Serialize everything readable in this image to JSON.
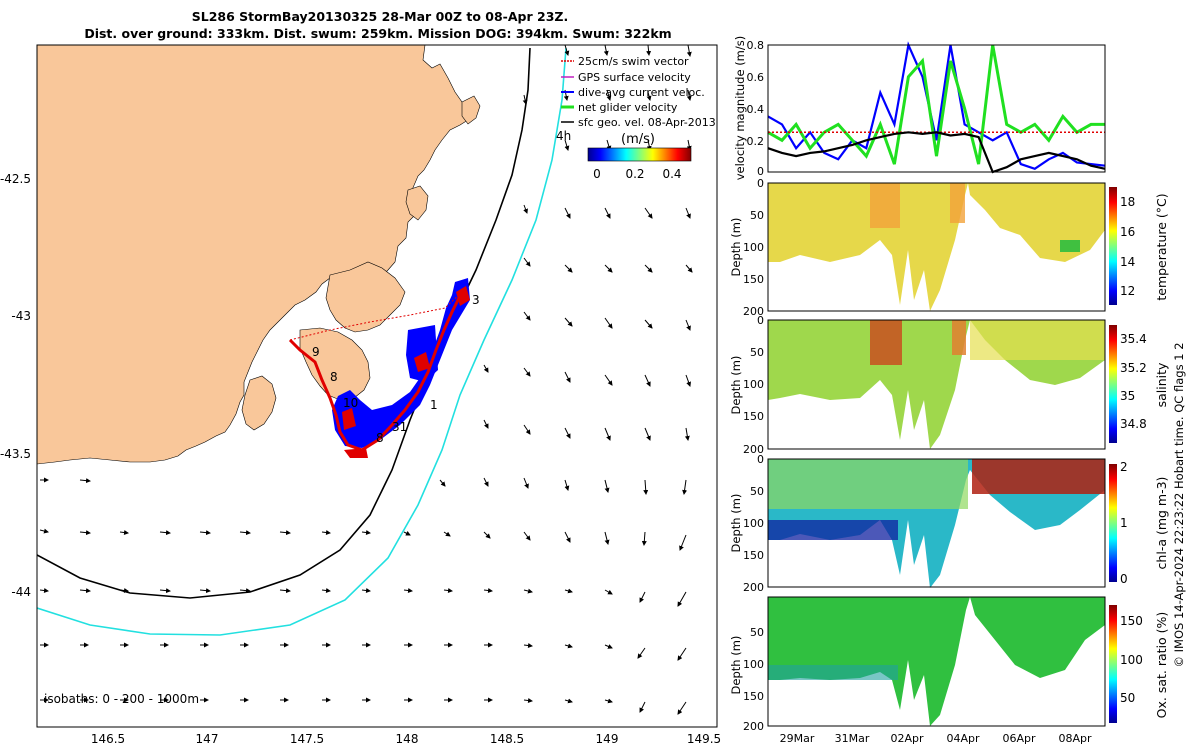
{
  "header": {
    "title_line1": "SL286 StormBay20130325 28-Mar 00Z to 08-Apr 23Z.",
    "title_line2": "Dist. over ground: 333km. Dist. swum: 259km. Mission DOG: 394km. Swum: 322km"
  },
  "map": {
    "x_ticks": [
      "146.5",
      "147",
      "147.5",
      "148",
      "148.5",
      "149",
      "149.5"
    ],
    "y_ticks": [
      "-42.5",
      "-43",
      "-43.5",
      "-44"
    ],
    "isobaths_label": "isobaths: 0 - 200 - 1000m",
    "elapsed_label": "4h",
    "legend": [
      {
        "label": "25cm/s swim vector",
        "color": "#e00000"
      },
      {
        "label": "GPS surface velocity",
        "color": "#c020c0"
      },
      {
        "label": "dive-avg current veloc.",
        "color": "#0000ff"
      },
      {
        "label": "net glider velocity",
        "color": "#20e020"
      },
      {
        "label": "sfc geo. vel. 08-Apr-2013",
        "color": "#000000"
      }
    ],
    "colorbar": {
      "title": "(m/s)",
      "ticks": [
        "0",
        "0.2",
        "0.4"
      ]
    },
    "waypoint_labels": [
      "9",
      "8",
      "10",
      "1",
      "31",
      "8",
      "3"
    ]
  },
  "colors": {
    "land": "#f9c79a",
    "isobath_200": "#000000",
    "isobath_1000": "#20e0e0",
    "glider_track": "#e00000",
    "dive_current": "#0000ff",
    "net_velocity": "#20e020"
  },
  "chart_data": [
    {
      "type": "line",
      "title": "",
      "ylabel": "velocity magnitude (m/s)",
      "ylim": [
        0,
        0.8
      ],
      "y_ticks": [
        "0.8",
        "0.6",
        "0.4",
        "0.2",
        "0"
      ],
      "series": [
        {
          "name": "dive-avg current veloc.",
          "color": "#0000ff",
          "values": [
            0.35,
            0.3,
            0.15,
            0.25,
            0.12,
            0.08,
            0.2,
            0.15,
            0.5,
            0.3,
            0.8,
            0.6,
            0.2,
            0.8,
            0.3,
            0.25,
            0.2,
            0.25,
            0.05,
            0.02,
            0.08,
            0.12,
            0.06,
            0.05,
            0.04
          ]
        },
        {
          "name": "net glider velocity",
          "color": "#20e020",
          "values": [
            0.25,
            0.2,
            0.3,
            0.15,
            0.25,
            0.3,
            0.2,
            0.1,
            0.3,
            0.05,
            0.6,
            0.7,
            0.1,
            0.7,
            0.4,
            0.05,
            0.8,
            0.3,
            0.25,
            0.3,
            0.2,
            0.35,
            0.25,
            0.3,
            0.3
          ]
        },
        {
          "name": "25cm/s swim vector",
          "color": "#e00000",
          "values": [
            0.25,
            0.25,
            0.25,
            0.25,
            0.25,
            0.25,
            0.25,
            0.25,
            0.25,
            0.25,
            0.25,
            0.25,
            0.25,
            0.25,
            0.25,
            0.25,
            0.25,
            0.25,
            0.25,
            0.25,
            0.25,
            0.25,
            0.25,
            0.25,
            0.25
          ]
        },
        {
          "name": "sfc geo. vel.",
          "color": "#000000",
          "values": [
            0.15,
            0.12,
            0.1,
            0.12,
            0.13,
            0.15,
            0.17,
            0.2,
            0.22,
            0.24,
            0.25,
            0.24,
            0.25,
            0.23,
            0.24,
            0.22,
            0.0,
            0.03,
            0.08,
            0.1,
            0.12,
            0.1,
            0.08,
            0.04,
            0.02
          ]
        }
      ]
    },
    {
      "type": "heatmap",
      "ylabel": "Depth (m)",
      "colorbar_label": "temperature (°C)",
      "ylim": [
        200,
        0
      ],
      "y_ticks": [
        "0",
        "50",
        "100",
        "150",
        "200"
      ],
      "colorbar_ticks": [
        "18",
        "16",
        "14",
        "12"
      ]
    },
    {
      "type": "heatmap",
      "ylabel": "Depth (m)",
      "colorbar_label": "salinity",
      "ylim": [
        200,
        0
      ],
      "y_ticks": [
        "0",
        "50",
        "100",
        "150",
        "200"
      ],
      "colorbar_ticks": [
        "35.4",
        "35.2",
        "35",
        "34.8"
      ]
    },
    {
      "type": "heatmap",
      "ylabel": "Depth (m)",
      "colorbar_label": "chl-a (mg m-3)",
      "ylim": [
        200,
        0
      ],
      "y_ticks": [
        "0",
        "50",
        "100",
        "150",
        "200"
      ],
      "colorbar_ticks": [
        "2",
        "1",
        "0"
      ]
    },
    {
      "type": "heatmap",
      "ylabel": "Depth (m)",
      "colorbar_label": "Ox. sat. ratio (%)",
      "ylim": [
        200,
        0
      ],
      "y_ticks": [
        "50",
        "100",
        "150",
        "200"
      ],
      "colorbar_ticks": [
        "150",
        "100",
        "50"
      ],
      "x_ticks": [
        "29Mar",
        "31Mar",
        "02Apr",
        "04Apr",
        "06Apr",
        "08Apr"
      ]
    }
  ],
  "footer": {
    "credit": "© IMOS 14-Apr-2024 22:23:22 Hobart time. QC flags 1  2"
  }
}
